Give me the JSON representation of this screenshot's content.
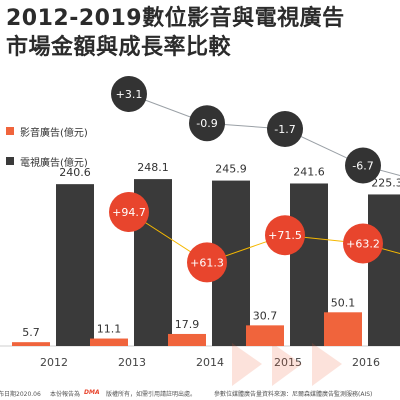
{
  "title_line1": "2012-2019數位影音與電視廣告",
  "title_line2": "市場金額與成長率比較",
  "colors": {
    "digital": "#f0643c",
    "tv": "#3a3a3a",
    "growth_line": "#f5b800",
    "tv_growth_line": "#9aa0a6",
    "digital_bubble": "#e8452d",
    "tv_bubble": "#333333"
  },
  "chart_data": {
    "type": "bar",
    "title": "2012-2019數位影音與電視廣告市場金額與成長率比較",
    "categories": [
      "2012",
      "2013",
      "2014",
      "2015",
      "2016"
    ],
    "legend": [
      "影音廣告(億元)",
      "電視廣告(億元)"
    ],
    "series": [
      {
        "name": "影音廣告(億元)",
        "values": [
          5.7,
          11.1,
          17.9,
          30.7,
          50.1
        ],
        "labels": [
          "5.7",
          "11.1",
          "17.9",
          "30.7",
          "50.1"
        ]
      },
      {
        "name": "電視廣告(億元)",
        "values": [
          240.6,
          248.1,
          245.9,
          241.6,
          225.3
        ],
        "labels": [
          "240.6",
          "248.1",
          "245.9",
          "241.6",
          "225.3"
        ]
      }
    ],
    "growth": {
      "digital": {
        "x": [
          "2013",
          "2014",
          "2015",
          "2016"
        ],
        "values": [
          94.7,
          61.3,
          71.5,
          63.2
        ],
        "labels": [
          "+94.7",
          "+61.3",
          "+71.5",
          "+63.2"
        ]
      },
      "tv": {
        "x": [
          "2013",
          "2014",
          "2015",
          "2016"
        ],
        "values": [
          3.1,
          -0.9,
          -1.7,
          -6.7
        ],
        "labels": [
          "+3.1",
          "-0.9",
          "-1.7",
          "-6.7"
        ]
      }
    },
    "ylim": [
      0,
      260
    ]
  },
  "footer": {
    "date": "布日期2020.06",
    "note": "本份報告為",
    "logo": "DMA",
    "rights": "版權所有，如需引用請註明出處。",
    "source": "參數位媒體廣告量資料來源：尼爾森媒體廣告監測服務(AIS)"
  }
}
